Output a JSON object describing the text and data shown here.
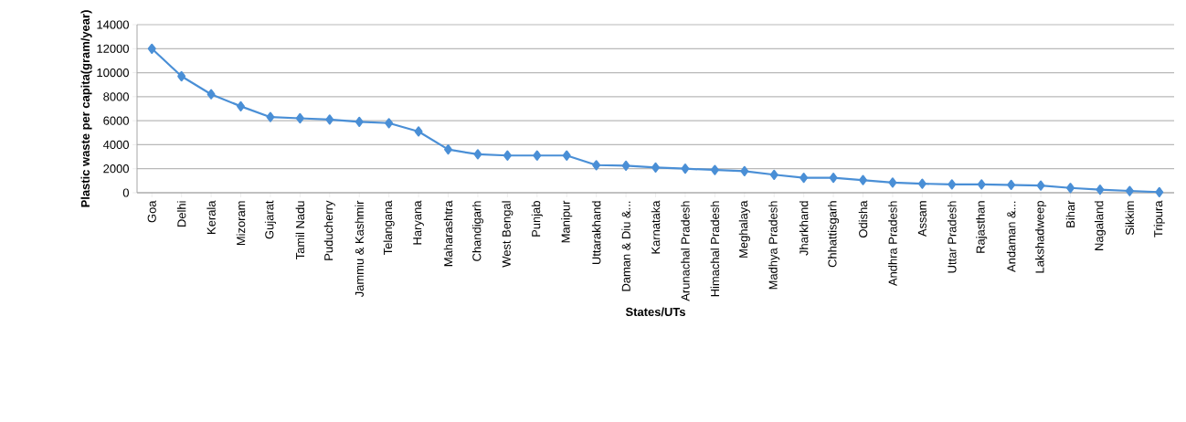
{
  "chart_data": {
    "type": "line",
    "xlabel": "States/UTs",
    "ylabel": "Plastic waste per capita(gram/year)",
    "categories": [
      "Goa",
      "Delhi",
      "Kerala",
      "Mizoram",
      "Gujarat",
      "Tamil Nadu",
      "Puducherry",
      "Jammu & Kashmir",
      "Telangana",
      "Haryana",
      "Maharashtra",
      "Chandigarh",
      "West Bengal",
      "Punjab",
      "Manipur",
      "Uttarakhand",
      "Daman & Diu &...",
      "Karnataka",
      "Arunachal Pradesh",
      "Himachal Pradesh",
      "Meghalaya",
      "Madhya Pradesh",
      "Jharkhand",
      "Chhattisgarh",
      "Odisha",
      "Andhra Pradesh",
      "Assam",
      "Uttar Pradesh",
      "Rajasthan",
      "Andaman &...",
      "Lakshadweep",
      "Bihar",
      "Nagaland",
      "Sikkim",
      "Tripura"
    ],
    "series": [
      {
        "color": "#4a8fd6",
        "values": [
          12000,
          9700,
          8200,
          7200,
          6300,
          6200,
          6100,
          5900,
          5800,
          5100,
          3600,
          3200,
          3100,
          3100,
          3100,
          2300,
          2250,
          2100,
          2000,
          1900,
          1800,
          1500,
          1250,
          1250,
          1050,
          850,
          750,
          700,
          700,
          650,
          600,
          400,
          250,
          150,
          50
        ]
      }
    ],
    "ylim": [
      0,
      14000
    ],
    "yticks": [
      0,
      2000,
      4000,
      6000,
      8000,
      10000,
      12000,
      14000
    ],
    "grid": "y",
    "marker": "diamond",
    "line_style": "solid"
  }
}
